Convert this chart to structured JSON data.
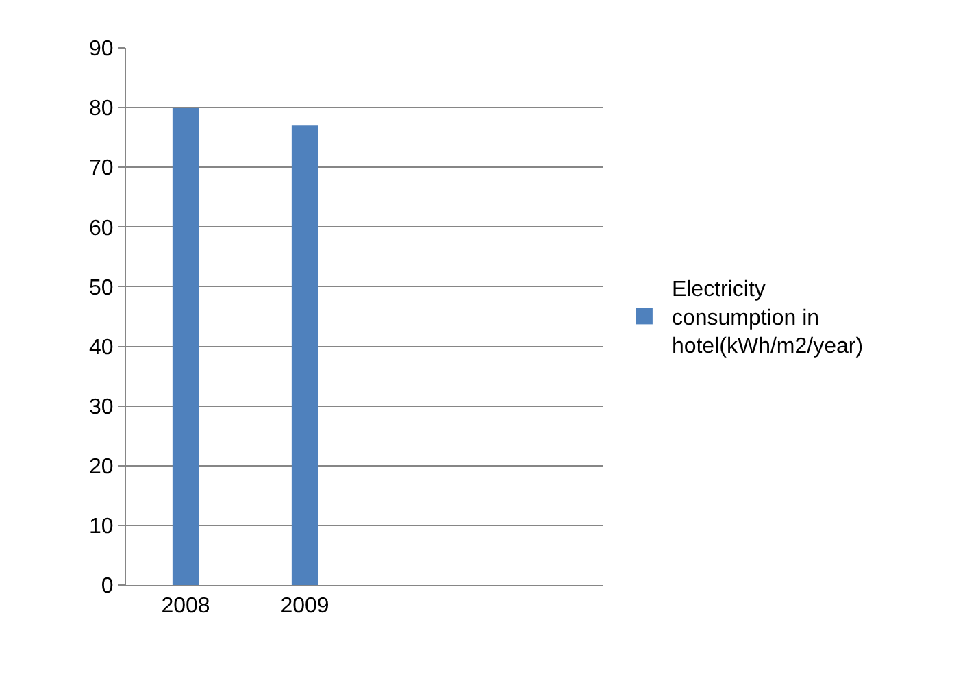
{
  "chart_data": {
    "type": "bar",
    "categories": [
      "2008",
      "2009",
      null,
      null
    ],
    "series": [
      {
        "name": "Electricity consumption in hotel(kWh/m2/year)",
        "color": "#4f81bd",
        "values": [
          80,
          77,
          null,
          null
        ]
      }
    ],
    "ylim": [
      0,
      90
    ],
    "yticks": [
      0,
      10,
      20,
      30,
      40,
      50,
      60,
      70,
      80,
      90
    ],
    "grid": "y",
    "legend": "right"
  }
}
